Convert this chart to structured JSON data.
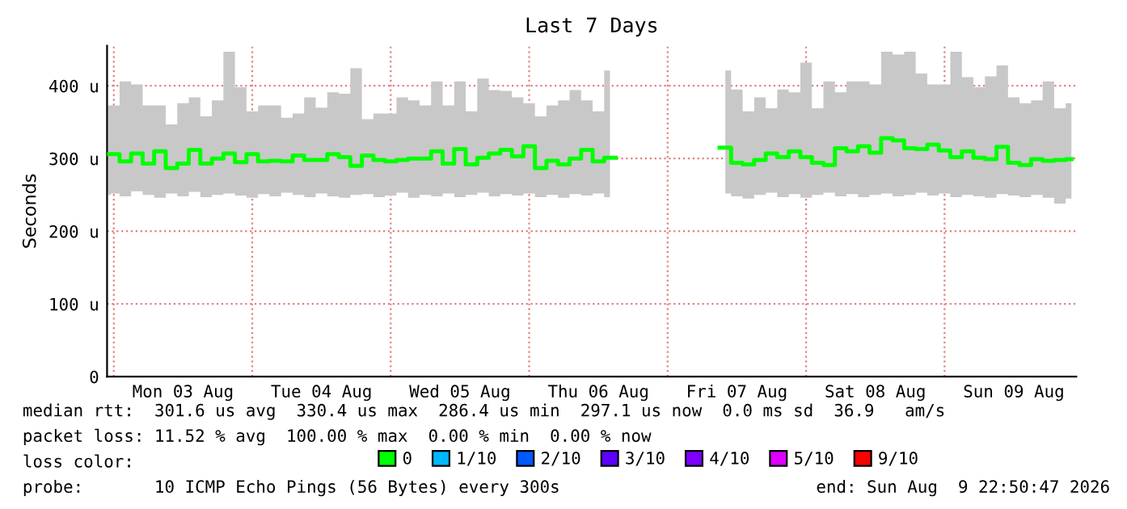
{
  "chart_data": {
    "type": "step",
    "title": "Last 7 Days",
    "ylabel": "Seconds",
    "xlim": [
      "2026-08-02T22:50",
      "2026-08-09T22:50"
    ],
    "xticks": [
      {
        "value": "2026-08-03T00:00",
        "label": null
      },
      {
        "value": "2026-08-03T12:00",
        "label": "Mon 03 Aug"
      },
      {
        "value": "2026-08-04T00:00",
        "label": null
      },
      {
        "value": "2026-08-04T12:00",
        "label": "Tue 04 Aug"
      },
      {
        "value": "2026-08-05T00:00",
        "label": null
      },
      {
        "value": "2026-08-05T12:00",
        "label": "Wed 05 Aug"
      },
      {
        "value": "2026-08-06T00:00",
        "label": null
      },
      {
        "value": "2026-08-06T12:00",
        "label": "Thu 06 Aug"
      },
      {
        "value": "2026-08-07T00:00",
        "label": null
      },
      {
        "value": "2026-08-07T12:00",
        "label": "Fri 07 Aug"
      },
      {
        "value": "2026-08-08T00:00",
        "label": null
      },
      {
        "value": "2026-08-08T12:00",
        "label": "Sat 08 Aug"
      },
      {
        "value": "2026-08-09T00:00",
        "label": null
      },
      {
        "value": "2026-08-09T12:00",
        "label": "Sun 09 Aug"
      }
    ],
    "ylim": [
      0,
      455
    ],
    "yticks": [
      0,
      {
        "value": 100,
        "label": "100 u"
      },
      {
        "value": 200,
        "label": "200 u"
      },
      {
        "value": 300,
        "label": "300 u"
      },
      {
        "value": 400,
        "label": "400 u"
      }
    ],
    "grid": true,
    "legend": "bottom",
    "legend_title": "loss color:",
    "x": [
      "2026-08-02T23:00",
      "2026-08-03T00:00",
      "2026-08-03T02:00",
      "2026-08-03T04:00",
      "2026-08-03T06:00",
      "2026-08-03T08:00",
      "2026-08-03T10:00",
      "2026-08-03T12:00",
      "2026-08-03T14:00",
      "2026-08-03T16:00",
      "2026-08-03T18:00",
      "2026-08-03T20:00",
      "2026-08-03T22:00",
      "2026-08-04T00:00",
      "2026-08-04T02:00",
      "2026-08-04T04:00",
      "2026-08-04T06:00",
      "2026-08-04T08:00",
      "2026-08-04T10:00",
      "2026-08-04T12:00",
      "2026-08-04T14:00",
      "2026-08-04T16:00",
      "2026-08-04T18:00",
      "2026-08-04T20:00",
      "2026-08-04T22:00",
      "2026-08-05T00:00",
      "2026-08-05T02:00",
      "2026-08-05T04:00",
      "2026-08-05T06:00",
      "2026-08-05T08:00",
      "2026-08-05T10:00",
      "2026-08-05T12:00",
      "2026-08-05T14:00",
      "2026-08-05T16:00",
      "2026-08-05T18:00",
      "2026-08-05T20:00",
      "2026-08-05T22:00",
      "2026-08-06T00:00",
      "2026-08-06T02:00",
      "2026-08-06T04:00",
      "2026-08-06T06:00",
      "2026-08-06T08:00",
      "2026-08-06T10:00",
      "2026-08-06T12:00",
      "2026-08-06T14:00",
      "2026-08-06T16:00",
      "2026-08-07T08:00",
      "2026-08-07T10:00",
      "2026-08-07T12:00",
      "2026-08-07T14:00",
      "2026-08-07T16:00",
      "2026-08-07T18:00",
      "2026-08-07T20:00",
      "2026-08-07T22:00",
      "2026-08-08T00:00",
      "2026-08-08T02:00",
      "2026-08-08T04:00",
      "2026-08-08T06:00",
      "2026-08-08T08:00",
      "2026-08-08T10:00",
      "2026-08-08T12:00",
      "2026-08-08T14:00",
      "2026-08-08T16:00",
      "2026-08-08T18:00",
      "2026-08-08T20:00",
      "2026-08-08T22:00",
      "2026-08-09T00:00",
      "2026-08-09T02:00",
      "2026-08-09T04:00",
      "2026-08-09T06:00",
      "2026-08-09T08:00",
      "2026-08-09T10:00",
      "2026-08-09T12:00",
      "2026-08-09T14:00",
      "2026-08-09T16:00",
      "2026-08-09T18:00",
      "2026-08-09T20:00",
      "2026-08-09T22:00"
    ],
    "series": [
      {
        "name": "0",
        "color": "#00ff00",
        "values": [
          306,
          306,
          296,
          307,
          293,
          310,
          287,
          293,
          312,
          293,
          300,
          307,
          295,
          306,
          296,
          297,
          296,
          304,
          298,
          298,
          306,
          302,
          290,
          304,
          298,
          296,
          298,
          300,
          300,
          310,
          293,
          313,
          292,
          301,
          307,
          312,
          303,
          317,
          287,
          297,
          292,
          300,
          312,
          296,
          301,
          null,
          null,
          315,
          294,
          292,
          298,
          307,
          302,
          310,
          302,
          294,
          291,
          314,
          310,
          317,
          308,
          328,
          325,
          314,
          313,
          319,
          311,
          302,
          310,
          301,
          299,
          316,
          294,
          291,
          299,
          297,
          298,
          299
        ],
        "lower": [
          250,
          252,
          248,
          255,
          250,
          246,
          252,
          248,
          254,
          247,
          250,
          252,
          249,
          246,
          251,
          248,
          253,
          250,
          247,
          252,
          248,
          246,
          250,
          251,
          247,
          249,
          253,
          246,
          250,
          248,
          252,
          247,
          250,
          253,
          248,
          251,
          249,
          252,
          247,
          250,
          246,
          251,
          249,
          252,
          247,
          null,
          null,
          252,
          248,
          245,
          250,
          253,
          247,
          251,
          246,
          250,
          253,
          248,
          251,
          247,
          250,
          252,
          248,
          250,
          253,
          249,
          252,
          247,
          250,
          248,
          246,
          251,
          249,
          247,
          250,
          246,
          238,
          245
        ],
        "upper": [
          373,
          373,
          406,
          402,
          373,
          373,
          347,
          376,
          384,
          358,
          380,
          447,
          398,
          365,
          373,
          373,
          356,
          362,
          384,
          370,
          391,
          389,
          424,
          354,
          362,
          362,
          384,
          380,
          373,
          406,
          373,
          406,
          365,
          410,
          394,
          393,
          384,
          376,
          358,
          373,
          380,
          394,
          380,
          365,
          421,
          null,
          null,
          421,
          395,
          365,
          384,
          369,
          395,
          391,
          432,
          369,
          406,
          391,
          406,
          406,
          402,
          447,
          443,
          447,
          417,
          402,
          402,
          447,
          412,
          398,
          413,
          428,
          384,
          376,
          380,
          406,
          369,
          376
        ]
      },
      {
        "name": "1/10",
        "color": "#00b8ff",
        "values": [
          null,
          null,
          null,
          null,
          null,
          null,
          null,
          null,
          null,
          null,
          null,
          null,
          null,
          null,
          null,
          null,
          null,
          null,
          null,
          null,
          null,
          null,
          null,
          null,
          null,
          null,
          null,
          null,
          null,
          null,
          null,
          null,
          null,
          null,
          null,
          null,
          null,
          null,
          null,
          null,
          null,
          null,
          null,
          null,
          null,
          null,
          null,
          null,
          null,
          null,
          null,
          null,
          null,
          null,
          null,
          null,
          null,
          null,
          null,
          null,
          null,
          null,
          null,
          null,
          null,
          null,
          null,
          null,
          null,
          null,
          null,
          null,
          null,
          null,
          null,
          null,
          null,
          null
        ]
      },
      {
        "name": "2/10",
        "color": "#0059ff",
        "values": [
          null,
          null,
          null,
          null,
          null,
          null,
          null,
          null,
          null,
          null,
          null,
          null,
          null,
          null,
          null,
          null,
          null,
          null,
          null,
          null,
          null,
          null,
          null,
          null,
          null,
          null,
          null,
          null,
          null,
          null,
          null,
          null,
          null,
          null,
          null,
          null,
          null,
          null,
          null,
          null,
          null,
          null,
          null,
          null,
          null,
          null,
          null,
          null,
          null,
          null,
          null,
          null,
          null,
          null,
          null,
          null,
          null,
          null,
          null,
          null,
          null,
          null,
          null,
          null,
          null,
          null,
          null,
          null,
          null,
          null,
          null,
          null,
          null,
          null,
          null,
          null,
          null,
          null
        ]
      },
      {
        "name": "3/10",
        "color": "#5e00ff",
        "values": [
          null,
          null,
          null,
          null,
          null,
          null,
          null,
          null,
          null,
          null,
          null,
          null,
          null,
          null,
          null,
          null,
          null,
          null,
          null,
          null,
          null,
          null,
          null,
          null,
          null,
          null,
          null,
          null,
          null,
          null,
          null,
          null,
          null,
          null,
          null,
          null,
          null,
          null,
          null,
          null,
          null,
          null,
          null,
          null,
          null,
          null,
          null,
          null,
          null,
          null,
          null,
          null,
          null,
          null,
          null,
          null,
          null,
          null,
          null,
          null,
          null,
          null,
          null,
          null,
          null,
          null,
          null,
          null,
          null,
          null,
          null,
          null,
          null,
          null,
          null,
          null,
          null,
          null
        ]
      },
      {
        "name": "4/10",
        "color": "#7e00ff",
        "values": [
          null,
          null,
          null,
          null,
          null,
          null,
          null,
          null,
          null,
          null,
          null,
          null,
          null,
          null,
          null,
          null,
          null,
          null,
          null,
          null,
          null,
          null,
          null,
          null,
          null,
          null,
          null,
          null,
          null,
          null,
          null,
          null,
          null,
          null,
          null,
          null,
          null,
          null,
          null,
          null,
          null,
          null,
          null,
          null,
          null,
          null,
          null,
          null,
          null,
          null,
          null,
          null,
          null,
          null,
          null,
          null,
          null,
          null,
          null,
          null,
          null,
          null,
          null,
          null,
          null,
          null,
          null,
          null,
          null,
          null,
          null,
          null,
          null,
          null,
          null,
          null,
          null,
          null
        ]
      },
      {
        "name": "5/10",
        "color": "#dd00ff",
        "values": [
          null,
          null,
          null,
          null,
          null,
          null,
          null,
          null,
          null,
          null,
          null,
          null,
          null,
          null,
          null,
          null,
          null,
          null,
          null,
          null,
          null,
          null,
          null,
          null,
          null,
          null,
          null,
          null,
          null,
          null,
          null,
          null,
          null,
          null,
          null,
          null,
          null,
          null,
          null,
          null,
          null,
          null,
          null,
          null,
          null,
          null,
          null,
          null,
          null,
          null,
          null,
          null,
          null,
          null,
          null,
          null,
          null,
          null,
          null,
          null,
          null,
          null,
          null,
          null,
          null,
          null,
          null,
          null,
          null,
          null,
          null,
          null,
          null,
          null,
          null,
          null,
          null,
          null
        ]
      },
      {
        "name": "9/10",
        "color": "#ff0000",
        "values": [
          null,
          null,
          null,
          null,
          null,
          null,
          null,
          null,
          null,
          null,
          null,
          null,
          null,
          null,
          null,
          null,
          null,
          null,
          null,
          null,
          null,
          null,
          null,
          null,
          null,
          null,
          null,
          null,
          null,
          null,
          null,
          null,
          null,
          null,
          null,
          null,
          null,
          null,
          null,
          null,
          null,
          null,
          null,
          null,
          null,
          null,
          null,
          null,
          null,
          null,
          null,
          null,
          null,
          null,
          null,
          null,
          null,
          null,
          null,
          null,
          null,
          null,
          null,
          null,
          null,
          null,
          null,
          null,
          null,
          null,
          null,
          null,
          null,
          null,
          null,
          null,
          null,
          null
        ]
      }
    ],
    "annotations": [
      "median rtt:  301.6 us avg  330.4 us max  286.4 us min  297.1 us now  0.0 ms sd  36.9   am/s",
      "packet loss: 11.52 % avg  100.00 % max  0.00 % min  0.00 % now",
      "probe:       10 ICMP Echo Pings (56 Bytes) every 300s",
      "end: Sun Aug  9 22:50:47 2026"
    ]
  }
}
